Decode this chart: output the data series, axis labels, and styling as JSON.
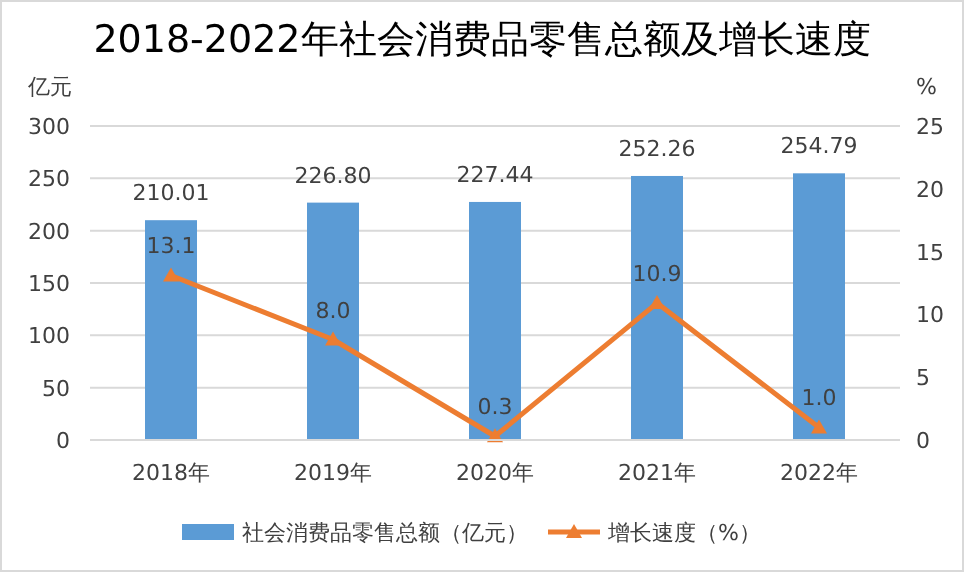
{
  "chart_data": {
    "type": "bar",
    "title": "2018-2022年社会消费品零售总额及增长速度",
    "categories": [
      "2018年",
      "2019年",
      "2020年",
      "2021年",
      "2022年"
    ],
    "series": [
      {
        "name": "社会消费品零售总额（亿元）",
        "color": "#5b9bd5",
        "values": [
          210.01,
          226.8,
          227.44,
          252.26,
          254.79
        ],
        "value_labels": [
          "210.01",
          "226.80",
          "227.44",
          "252.26",
          "254.79"
        ]
      },
      {
        "name": "增长速度（%）",
        "type": "line",
        "axis": "y2",
        "color": "#ed7d31",
        "marker": "triangle",
        "values": [
          13.1,
          8.0,
          0.3,
          10.9,
          1.0
        ],
        "value_labels": [
          "13.1",
          "8.0",
          "0.3",
          "10.9",
          "1.0"
        ]
      }
    ],
    "ylabel": "亿元",
    "y2label": "%",
    "ylim": [
      0,
      300
    ],
    "yticks": [
      0,
      50,
      100,
      150,
      200,
      250,
      300
    ],
    "y2lim": [
      0,
      25
    ],
    "y2ticks": [
      0,
      5,
      10,
      15,
      20,
      25
    ],
    "grid": "y",
    "legend": "bottom"
  }
}
